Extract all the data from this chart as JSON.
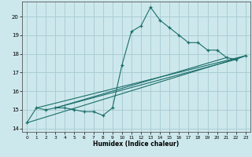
{
  "xlabel": "Humidex (Indice chaleur)",
  "bg_color": "#cde8ec",
  "grid_color": "#aacdd4",
  "line_color": "#1a6e6a",
  "xlim": [
    -0.5,
    23.5
  ],
  "ylim": [
    13.8,
    20.8
  ],
  "yticks": [
    14,
    15,
    16,
    17,
    18,
    19,
    20
  ],
  "xticks": [
    0,
    1,
    2,
    3,
    4,
    5,
    6,
    7,
    8,
    9,
    10,
    11,
    12,
    13,
    14,
    15,
    16,
    17,
    18,
    19,
    20,
    21,
    22,
    23
  ],
  "series": [
    [
      0,
      14.3
    ],
    [
      1,
      15.1
    ],
    [
      2,
      15.0
    ],
    [
      3,
      15.1
    ],
    [
      4,
      15.1
    ],
    [
      5,
      15.0
    ],
    [
      6,
      14.9
    ],
    [
      7,
      14.9
    ],
    [
      8,
      14.7
    ],
    [
      9,
      15.1
    ],
    [
      10,
      17.4
    ],
    [
      11,
      19.2
    ],
    [
      12,
      19.5
    ],
    [
      13,
      20.5
    ],
    [
      14,
      19.8
    ],
    [
      15,
      19.4
    ],
    [
      16,
      19.0
    ],
    [
      17,
      18.6
    ],
    [
      18,
      18.6
    ],
    [
      19,
      18.2
    ],
    [
      20,
      18.2
    ],
    [
      21,
      17.8
    ],
    [
      22,
      17.7
    ],
    [
      23,
      17.9
    ]
  ],
  "extra_lines": [
    {
      "x": [
        0,
        23
      ],
      "y": [
        14.3,
        17.9
      ]
    },
    {
      "x": [
        1,
        23
      ],
      "y": [
        15.1,
        17.9
      ]
    },
    {
      "x": [
        3,
        22
      ],
      "y": [
        15.1,
        17.7
      ]
    },
    {
      "x": [
        3,
        21
      ],
      "y": [
        15.1,
        17.8
      ]
    }
  ]
}
